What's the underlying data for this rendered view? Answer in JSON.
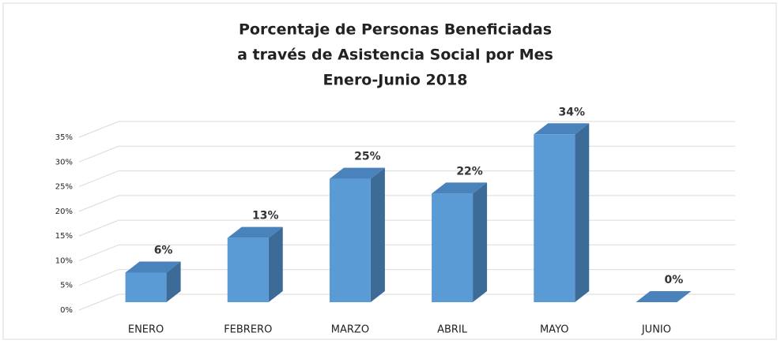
{
  "chart_data": {
    "type": "bar3d",
    "title": [
      "Porcentaje de Personas Beneficiadas",
      "a través de Asistencia Social por Mes",
      "Enero-Junio 2018"
    ],
    "categories": [
      "ENERO",
      "FEBRERO",
      "MARZO",
      "ABRIL",
      "MAYO",
      "JUNIO"
    ],
    "values": [
      6,
      13,
      25,
      22,
      34,
      0
    ],
    "value_labels": [
      "6%",
      "13%",
      "25%",
      "22%",
      "34%",
      "0%"
    ],
    "color": "#5b9bd5",
    "ylim": [
      0,
      35
    ],
    "yticks": [
      {
        "value": 0,
        "label": "0%"
      },
      {
        "value": 5,
        "label": "5%"
      },
      {
        "value": 10,
        "label": "10%"
      },
      {
        "value": 15,
        "label": "15%"
      },
      {
        "value": 20,
        "label": "20%"
      },
      {
        "value": 25,
        "label": "25%"
      },
      {
        "value": 30,
        "label": "30%"
      },
      {
        "value": 35,
        "label": "35%"
      }
    ],
    "grid": true
  }
}
